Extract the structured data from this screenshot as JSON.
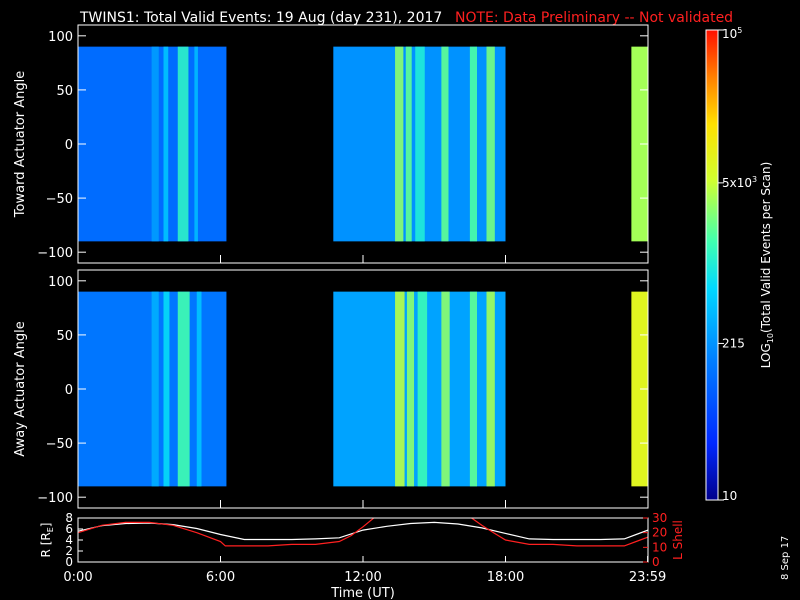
{
  "title": "TWINS1: Total Valid Events: 19 Aug (day 231), 2017",
  "note": "NOTE: Data Preliminary -- Not validated",
  "date_stamp": "8 Sep 17",
  "colors": {
    "background": "#000000",
    "note": "#ff2020",
    "axis": "#ffffff",
    "lshell": "#ff2020"
  },
  "chart_data": [
    {
      "type": "heatmap",
      "name": "toward",
      "ylabel": "Toward Actuator Angle",
      "ylim": [
        -110,
        110
      ],
      "yticks": [
        100,
        50,
        0,
        -50,
        -100
      ],
      "data_ylim": [
        -90,
        90
      ],
      "xlim": [
        0,
        24
      ],
      "blocks": [
        {
          "x0": 0.0,
          "x1": 6.25,
          "level": 0.26
        },
        {
          "x0": 10.75,
          "x1": 18.0,
          "level": 0.33
        },
        {
          "x0": 23.3,
          "x1": 24.0,
          "level": 0.64
        }
      ],
      "stripes": [
        {
          "x": 3.1,
          "w": 0.3,
          "level": 0.35
        },
        {
          "x": 3.6,
          "w": 0.2,
          "level": 0.42
        },
        {
          "x": 4.2,
          "w": 0.45,
          "level": 0.52
        },
        {
          "x": 4.9,
          "w": 0.15,
          "level": 0.4
        },
        {
          "x": 13.35,
          "w": 0.35,
          "level": 0.62
        },
        {
          "x": 13.8,
          "w": 0.25,
          "level": 0.58
        },
        {
          "x": 14.2,
          "w": 0.4,
          "level": 0.5
        },
        {
          "x": 15.3,
          "w": 0.3,
          "level": 0.58
        },
        {
          "x": 16.5,
          "w": 0.3,
          "level": 0.56
        },
        {
          "x": 17.2,
          "w": 0.35,
          "level": 0.6
        }
      ]
    },
    {
      "type": "heatmap",
      "name": "away",
      "ylabel": "Away Actuator Angle",
      "ylim": [
        -110,
        110
      ],
      "yticks": [
        100,
        50,
        0,
        -50,
        -100
      ],
      "data_ylim": [
        -90,
        90
      ],
      "xlim": [
        0,
        24
      ],
      "blocks": [
        {
          "x0": 0.0,
          "x1": 6.25,
          "level": 0.28
        },
        {
          "x0": 10.75,
          "x1": 18.0,
          "level": 0.36
        },
        {
          "x0": 23.3,
          "x1": 24.0,
          "level": 0.72
        }
      ],
      "stripes": [
        {
          "x": 3.1,
          "w": 0.3,
          "level": 0.38
        },
        {
          "x": 3.6,
          "w": 0.25,
          "level": 0.46
        },
        {
          "x": 4.2,
          "w": 0.5,
          "level": 0.55
        },
        {
          "x": 5.0,
          "w": 0.2,
          "level": 0.42
        },
        {
          "x": 13.35,
          "w": 0.4,
          "level": 0.66
        },
        {
          "x": 13.85,
          "w": 0.3,
          "level": 0.62
        },
        {
          "x": 14.3,
          "w": 0.4,
          "level": 0.54
        },
        {
          "x": 15.3,
          "w": 0.35,
          "level": 0.62
        },
        {
          "x": 16.5,
          "w": 0.3,
          "level": 0.58
        },
        {
          "x": 17.2,
          "w": 0.35,
          "level": 0.64
        }
      ]
    },
    {
      "type": "line",
      "name": "orbit",
      "ylabel": "R [R",
      "ylabel_sub": "E",
      "ylabel_end": "]",
      "ylim": [
        0,
        8
      ],
      "yticks": [
        0,
        2,
        4,
        6,
        8
      ],
      "y2label": "L Shell",
      "y2lim": [
        0,
        30
      ],
      "y2ticks": [
        0,
        10,
        20,
        30
      ],
      "xlim": [
        0,
        24
      ],
      "xticks": [
        0,
        6,
        12,
        18,
        23.983
      ],
      "xticklabels": [
        "0:00",
        "6:00",
        "12:00",
        "18:00",
        "23:59"
      ],
      "xlabel": "Time (UT)",
      "series": [
        {
          "axis": "left",
          "color": "#ffffff",
          "x": [
            0,
            1,
            2,
            3,
            4,
            5,
            6,
            7,
            8,
            9,
            10,
            11,
            12,
            13,
            14,
            15,
            16,
            17,
            18,
            19,
            20,
            21,
            22,
            23,
            24
          ],
          "y": [
            5.6,
            6.6,
            7.0,
            7.1,
            6.8,
            6.1,
            5.0,
            4.1,
            4.1,
            4.1,
            4.2,
            4.4,
            5.8,
            6.5,
            7.0,
            7.2,
            6.9,
            6.2,
            5.2,
            4.2,
            4.1,
            4.1,
            4.1,
            4.2,
            5.8
          ]
        },
        {
          "axis": "right",
          "color": "#ff2020",
          "x": [
            0,
            1,
            2,
            3,
            4,
            5,
            6,
            6.2,
            7,
            8,
            9,
            10,
            11,
            11.5,
            12,
            12.6,
            16.4,
            17,
            17.5,
            18,
            19,
            20,
            21,
            22,
            23,
            24
          ],
          "y": [
            20,
            25,
            27,
            27,
            25,
            20,
            14,
            11,
            11,
            11,
            12,
            12,
            14,
            18,
            24,
            32,
            32,
            25,
            20,
            15,
            12,
            12,
            11,
            11,
            11,
            17
          ]
        }
      ]
    },
    {
      "type": "colorbar",
      "name": "colorbar",
      "label": "LOG",
      "label_sub": "10",
      "label_end": "(Total Valid Events per Scan)",
      "scale": "log",
      "range": [
        10,
        100000
      ],
      "ticks": [
        {
          "base": "10",
          "exp": "5",
          "value": 100000
        },
        {
          "base": "5x10",
          "exp": "3",
          "value": 5000
        },
        {
          "base": "215",
          "exp": "",
          "value": 215
        },
        {
          "base": "10",
          "exp": "",
          "value": 10
        }
      ]
    }
  ]
}
